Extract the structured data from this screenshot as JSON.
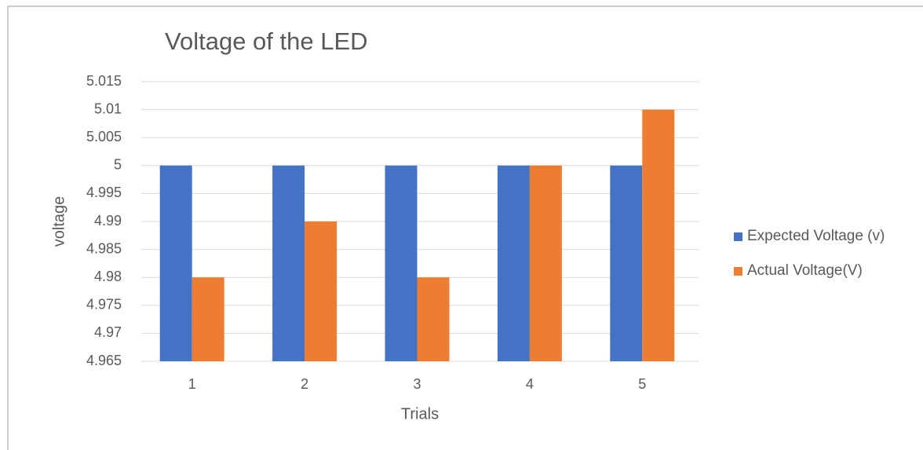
{
  "chart_data": {
    "type": "bar",
    "title": "Voltage of the LED",
    "x_label": "Trials",
    "y_label": "voltage",
    "categories": [
      "1",
      "2",
      "3",
      "4",
      "5"
    ],
    "series": [
      {
        "name": "Expected Voltage (v)",
        "color": "#4472c4",
        "values": [
          5,
          5,
          5,
          5,
          5
        ]
      },
      {
        "name": "Actual Voltage(V)",
        "color": "#ed7d31",
        "values": [
          4.98,
          4.99,
          4.98,
          5,
          5.01
        ]
      }
    ],
    "ylim": [
      4.965,
      5.015
    ],
    "yticks": [
      4.965,
      4.97,
      4.975,
      4.98,
      4.985,
      4.99,
      4.995,
      5,
      5.005,
      5.01,
      5.015
    ],
    "grid": true,
    "legend": "right"
  }
}
